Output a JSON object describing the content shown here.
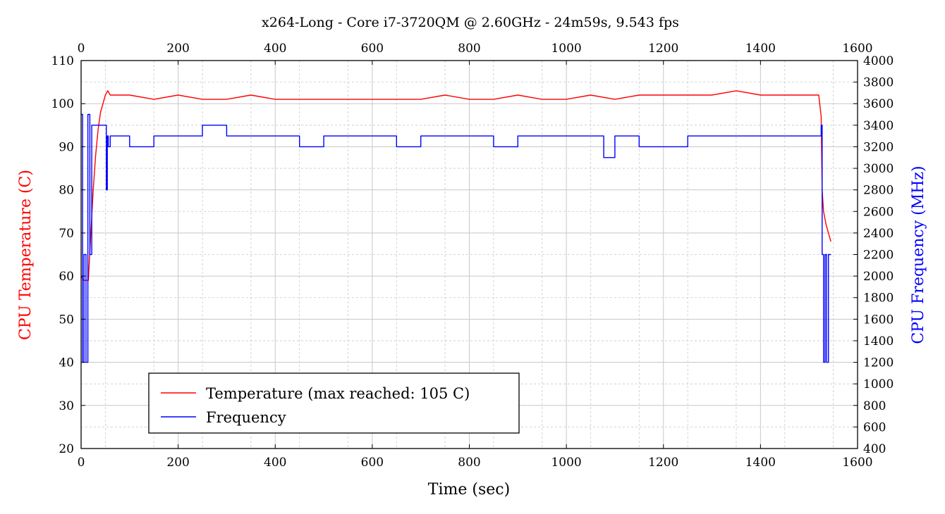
{
  "chart_data": {
    "type": "line",
    "title": "x264-Long - Core i7-3720QM @ 2.60GHz - 24m59s, 9.543 fps",
    "xlabel": "Time (sec)",
    "ylabel_left": "CPU Temperature (C)",
    "ylabel_right": "CPU Frequency (MHz)",
    "xlim": [
      0,
      1600
    ],
    "ylim_left": [
      20,
      110
    ],
    "ylim_right": [
      400,
      4000
    ],
    "x_ticks": [
      "0",
      "200",
      "400",
      "600",
      "800",
      "1000",
      "1200",
      "1400",
      "1600"
    ],
    "y_left_ticks": [
      "20",
      "30",
      "40",
      "50",
      "60",
      "70",
      "80",
      "90",
      "100",
      "110"
    ],
    "y_right_ticks": [
      "400",
      "600",
      "800",
      "1000",
      "1200",
      "1400",
      "1600",
      "1800",
      "2000",
      "2200",
      "2400",
      "2600",
      "2800",
      "3000",
      "3200",
      "3400",
      "3600",
      "3800",
      "4000"
    ],
    "grid": true,
    "legend_position": "bottom-left",
    "colors": {
      "temperature": "#ff0000",
      "frequency": "#0000ff"
    },
    "series": [
      {
        "name": "Temperature (max reached: 105 C)",
        "axis": "left",
        "x": [
          0,
          5,
          10,
          15,
          20,
          25,
          30,
          35,
          40,
          45,
          50,
          55,
          60,
          70,
          80,
          100,
          150,
          200,
          250,
          300,
          350,
          400,
          450,
          500,
          550,
          600,
          650,
          700,
          750,
          800,
          850,
          900,
          950,
          1000,
          1050,
          1100,
          1150,
          1200,
          1250,
          1300,
          1350,
          1400,
          1450,
          1500,
          1520,
          1525,
          1527,
          1530,
          1535,
          1540,
          1545
        ],
        "values": [
          60,
          59,
          59,
          59,
          70,
          80,
          88,
          94,
          98,
          100,
          102,
          103,
          102,
          102,
          102,
          102,
          101,
          102,
          101,
          101,
          102,
          101,
          101,
          101,
          101,
          101,
          101,
          101,
          102,
          101,
          101,
          102,
          101,
          101,
          102,
          101,
          102,
          102,
          102,
          102,
          103,
          102,
          102,
          102,
          102,
          97,
          80,
          75,
          72,
          70,
          68
        ]
      },
      {
        "name": "Frequency",
        "axis": "right",
        "x": [
          0,
          3,
          6,
          10,
          14,
          18,
          22,
          26,
          30,
          40,
          50,
          52,
          54,
          56,
          60,
          80,
          100,
          150,
          200,
          250,
          300,
          350,
          400,
          450,
          500,
          550,
          600,
          650,
          700,
          750,
          800,
          850,
          900,
          950,
          1000,
          1050,
          1075,
          1077,
          1100,
          1150,
          1200,
          1250,
          1300,
          1350,
          1400,
          1450,
          1500,
          1520,
          1525,
          1527,
          1530,
          1533,
          1536,
          1540,
          1545
        ],
        "values": [
          3500,
          1200,
          2200,
          1200,
          3500,
          2200,
          3400,
          3400,
          3400,
          3400,
          3400,
          2800,
          3300,
          3200,
          3300,
          3300,
          3200,
          3300,
          3300,
          3400,
          3300,
          3300,
          3300,
          3200,
          3300,
          3300,
          3300,
          3200,
          3300,
          3300,
          3300,
          3200,
          3300,
          3300,
          3300,
          3300,
          3300,
          3100,
          3300,
          3200,
          3200,
          3300,
          3300,
          3300,
          3300,
          3300,
          3300,
          3300,
          3400,
          2200,
          1200,
          2200,
          1200,
          2200,
          2200
        ]
      }
    ]
  }
}
